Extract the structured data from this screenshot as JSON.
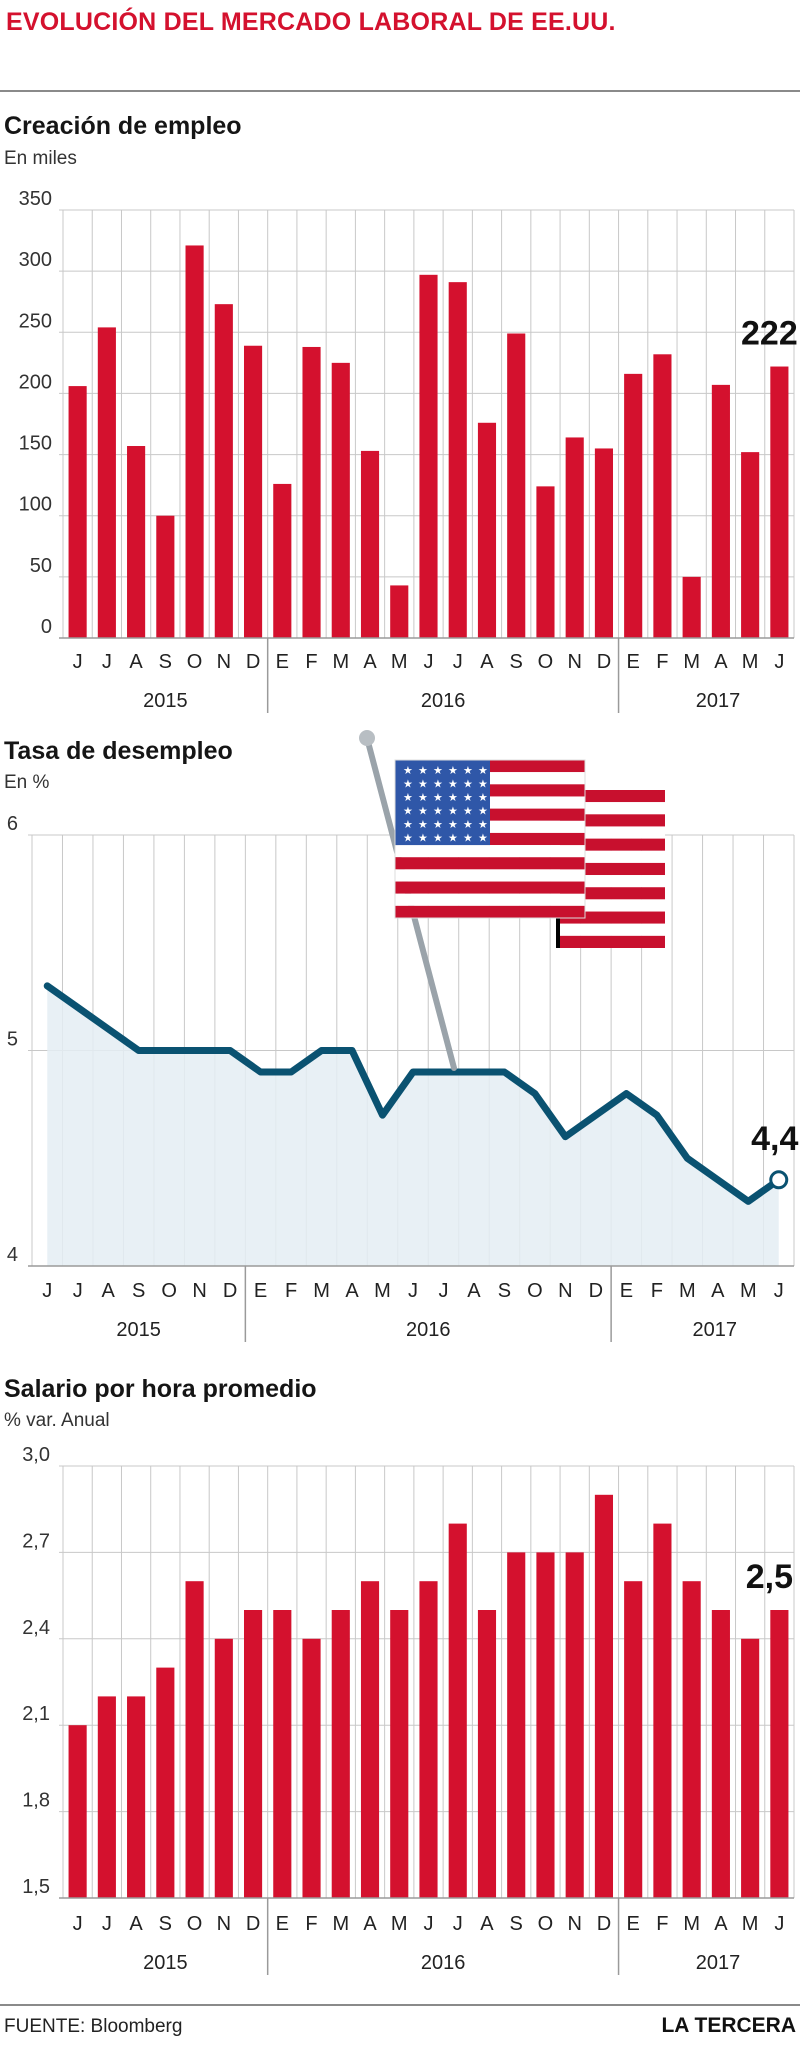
{
  "title": "EVOLUCIÓN DEL MERCADO LABORAL DE EE.UU.",
  "colors": {
    "bar": "#d4112e",
    "line": "#0a5271",
    "area": "#e4edf3",
    "title": "#d4112e"
  },
  "icons": {
    "flag": "us-flag-icon"
  },
  "months": [
    "J",
    "J",
    "A",
    "S",
    "O",
    "N",
    "D",
    "E",
    "F",
    "M",
    "A",
    "M",
    "J",
    "J",
    "A",
    "S",
    "O",
    "N",
    "D",
    "E",
    "F",
    "M",
    "A",
    "M",
    "J"
  ],
  "years": [
    "2015",
    "2016",
    "2017"
  ],
  "chart_data": [
    {
      "type": "bar",
      "title": "Creación de empleo",
      "subtitle": "En miles",
      "categories": [
        "J",
        "J",
        "A",
        "S",
        "O",
        "N",
        "D",
        "E",
        "F",
        "M",
        "A",
        "M",
        "J",
        "J",
        "A",
        "S",
        "O",
        "N",
        "D",
        "E",
        "F",
        "M",
        "A",
        "M",
        "J"
      ],
      "values": [
        206,
        254,
        157,
        100,
        321,
        273,
        239,
        126,
        238,
        225,
        153,
        43,
        297,
        291,
        176,
        249,
        124,
        164,
        155,
        216,
        232,
        50,
        207,
        152,
        222
      ],
      "ylim": [
        0,
        350
      ],
      "yticks": [
        "0",
        "50",
        "100",
        "150",
        "200",
        "250",
        "300",
        "350"
      ],
      "annotation": "222",
      "grid": true
    },
    {
      "type": "area",
      "title": "Tasa de desempleo",
      "subtitle": "En %",
      "categories": [
        "J",
        "J",
        "A",
        "S",
        "O",
        "N",
        "D",
        "E",
        "F",
        "M",
        "A",
        "M",
        "J",
        "J",
        "A",
        "S",
        "O",
        "N",
        "D",
        "E",
        "F",
        "M",
        "A",
        "M",
        "J"
      ],
      "values": [
        5.3,
        5.2,
        5.1,
        5.0,
        5.0,
        5.0,
        5.0,
        4.9,
        4.9,
        5.0,
        5.0,
        4.7,
        4.9,
        4.9,
        4.9,
        4.9,
        4.8,
        4.6,
        4.7,
        4.8,
        4.7,
        4.5,
        4.4,
        4.3,
        4.4
      ],
      "ylim": [
        4,
        6
      ],
      "yticks": [
        "4",
        "5",
        "6"
      ],
      "annotation": "4,4",
      "grid": true
    },
    {
      "type": "bar",
      "title": "Salario por hora promedio",
      "subtitle": "% var. Anual",
      "categories": [
        "J",
        "J",
        "A",
        "S",
        "O",
        "N",
        "D",
        "E",
        "F",
        "M",
        "A",
        "M",
        "J",
        "J",
        "A",
        "S",
        "O",
        "N",
        "D",
        "E",
        "F",
        "M",
        "A",
        "M",
        "J"
      ],
      "values": [
        2.1,
        2.2,
        2.2,
        2.3,
        2.6,
        2.4,
        2.5,
        2.5,
        2.4,
        2.5,
        2.6,
        2.5,
        2.6,
        2.8,
        2.5,
        2.7,
        2.7,
        2.7,
        2.9,
        2.6,
        2.8,
        2.6,
        2.5,
        2.4,
        2.5
      ],
      "ylim": [
        1.5,
        3.0
      ],
      "yticks": [
        "1,5",
        "1,8",
        "2,1",
        "2,4",
        "2,7",
        "3,0"
      ],
      "annotation": "2,5",
      "grid": true
    }
  ],
  "footer": {
    "source": "FUENTE: Bloomberg",
    "brand": "LA TERCERA"
  }
}
